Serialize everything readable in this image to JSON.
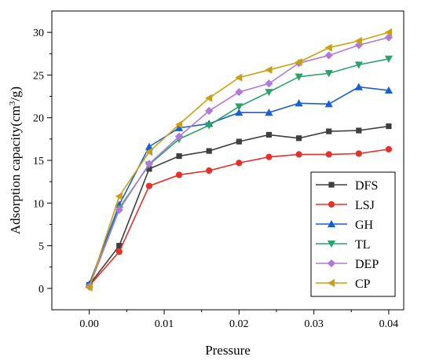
{
  "chart_data": {
    "type": "line",
    "xlabel": "Pressure",
    "ylabel_main": "Adsorption capacity(cm",
    "ylabel_sup": "3",
    "ylabel_tail": "/g)",
    "xlim": [
      -0.005,
      0.042
    ],
    "ylim": [
      -2.5,
      32.5
    ],
    "xticks": [
      0.0,
      0.01,
      0.02,
      0.03,
      0.04
    ],
    "xtick_labels": [
      "0.00",
      "0.01",
      "0.02",
      "0.03",
      "0.04"
    ],
    "yticks": [
      0,
      5,
      10,
      15,
      20,
      25,
      30
    ],
    "ytick_labels": [
      "0",
      "5",
      "10",
      "15",
      "20",
      "25",
      "30"
    ],
    "legend_position": "bottom-right",
    "x": [
      0,
      0.004,
      0.008,
      0.012,
      0.016,
      0.02,
      0.024,
      0.028,
      0.032,
      0.036,
      0.04
    ],
    "series": [
      {
        "name": "DFS",
        "color": "#3f3f3f",
        "marker": "square",
        "values": [
          0.4,
          5.0,
          14.0,
          15.5,
          16.1,
          17.2,
          18.0,
          17.6,
          18.4,
          18.5,
          19.0
        ]
      },
      {
        "name": "LSJ",
        "color": "#e8302a",
        "marker": "circle",
        "values": [
          0.3,
          4.3,
          12.0,
          13.3,
          13.8,
          14.7,
          15.4,
          15.7,
          15.7,
          15.8,
          16.3
        ]
      },
      {
        "name": "GH",
        "color": "#1a5fd1",
        "marker": "triangle-up",
        "values": [
          0.5,
          9.8,
          16.6,
          18.8,
          19.3,
          20.6,
          20.6,
          21.7,
          21.6,
          23.6,
          23.2
        ]
      },
      {
        "name": "TL",
        "color": "#2aa36b",
        "marker": "triangle-down",
        "values": [
          0.2,
          9.4,
          14.5,
          17.5,
          19.1,
          21.3,
          23.0,
          24.8,
          25.2,
          26.2,
          26.9
        ]
      },
      {
        "name": "DEP",
        "color": "#b07ad9",
        "marker": "diamond",
        "values": [
          0.2,
          9.2,
          14.6,
          17.8,
          20.8,
          23.0,
          24.0,
          26.4,
          27.3,
          28.5,
          29.4
        ]
      },
      {
        "name": "CP",
        "color": "#c9a014",
        "marker": "triangle-left",
        "values": [
          0.1,
          10.8,
          16.0,
          19.2,
          22.3,
          24.7,
          25.6,
          26.5,
          28.2,
          29.0,
          30.0
        ]
      }
    ]
  }
}
